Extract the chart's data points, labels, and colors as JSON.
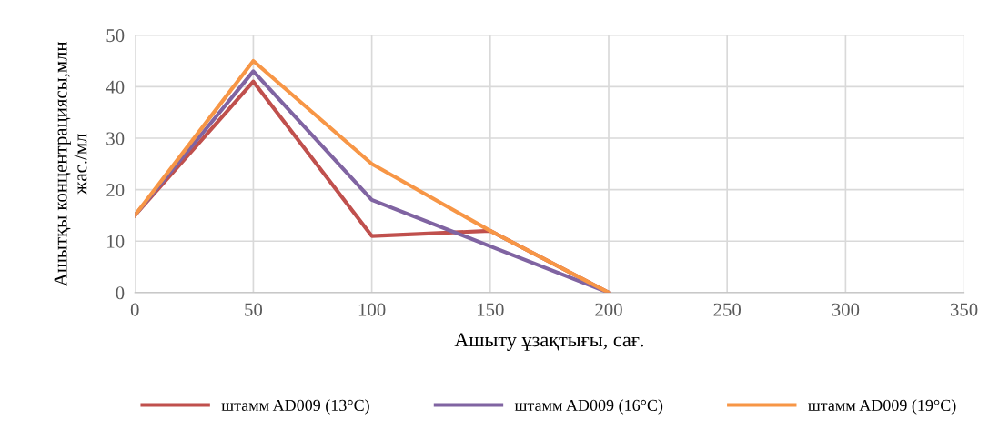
{
  "chart_data": {
    "type": "line",
    "xlabel": "Ашыту ұзақтығы, сағ.",
    "ylabel": "Ашытқы концентрациясы,млн\nжас./мл",
    "x": [
      0,
      50,
      100,
      150,
      200
    ],
    "series": [
      {
        "name": "штамм AD009 (13°C)",
        "color": "#c0504d",
        "values": [
          15,
          41,
          11,
          12,
          0
        ]
      },
      {
        "name": "штамм AD009 (16°C)",
        "color": "#8064a2",
        "values": [
          15,
          43,
          18,
          9,
          0
        ]
      },
      {
        "name": "штамм AD009 (19°C)",
        "color": "#f79646",
        "values": [
          15,
          45,
          25,
          12,
          0
        ]
      }
    ],
    "xlim": [
      0,
      350
    ],
    "xticks": [
      0,
      50,
      100,
      150,
      200,
      250,
      300,
      350
    ],
    "ylim": [
      0,
      50
    ],
    "yticks": [
      0,
      10,
      20,
      30,
      40,
      50
    ],
    "grid": true,
    "legend": "bottom",
    "marker": "none",
    "line_style": "solid"
  }
}
